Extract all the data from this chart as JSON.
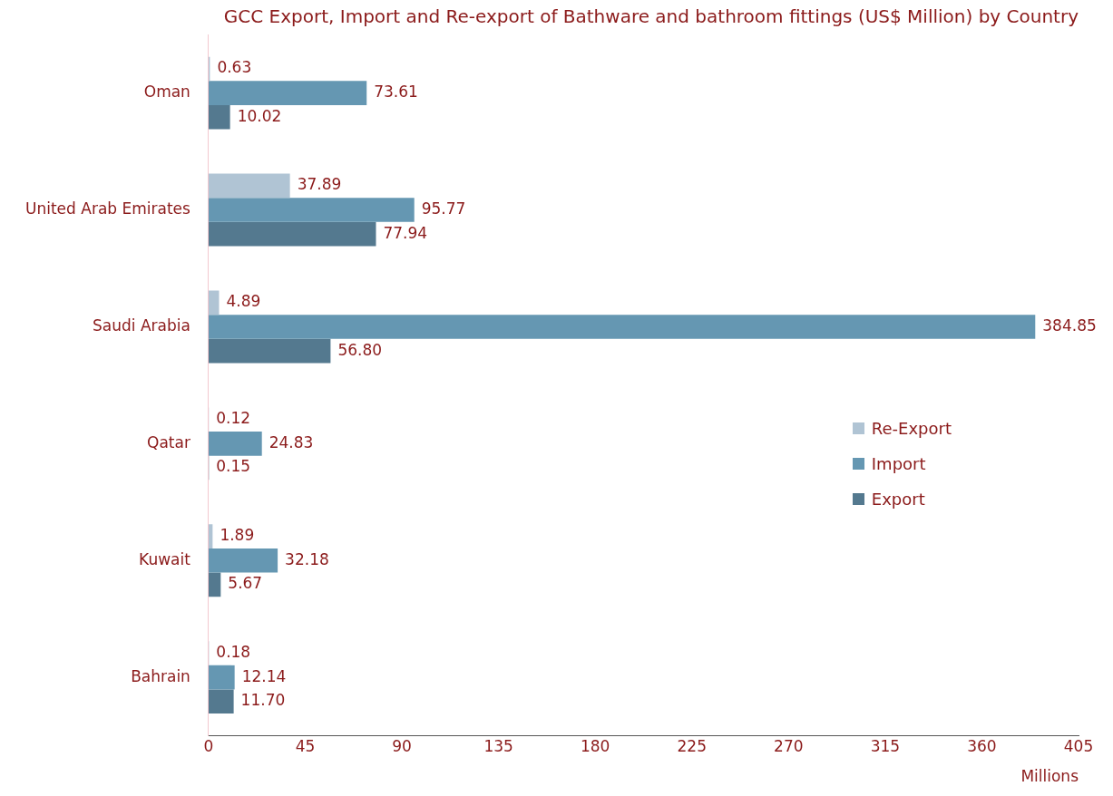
{
  "chart_data": {
    "type": "bar",
    "orientation": "horizontal",
    "title": "GCC Export, Import and Re-export of Bathware and bathroom fittings (US$ Million) by Country",
    "xlabel": "Millions",
    "categories": [
      "Oman",
      "United Arab Emirates",
      "Saudi Arabia",
      "Qatar",
      "Kuwait",
      "Bahrain"
    ],
    "series": [
      {
        "name": "Re-Export",
        "color": "#b0c4d4",
        "values": [
          0.63,
          37.89,
          4.89,
          0.12,
          1.89,
          0.18
        ],
        "value_labels": [
          "0.63",
          "37.89",
          "4.89",
          "0.12",
          "1.89",
          "0.18"
        ]
      },
      {
        "name": "Import",
        "color": "#6597b2",
        "values": [
          73.61,
          95.77,
          384.85,
          24.83,
          32.18,
          12.14
        ],
        "value_labels": [
          "73.61",
          "95.77",
          "384.85",
          "24.83",
          "32.18",
          "12.14"
        ]
      },
      {
        "name": "Export",
        "color": "#54798f",
        "values": [
          10.02,
          77.94,
          56.8,
          0.15,
          5.67,
          11.7
        ],
        "value_labels": [
          "10.02",
          "77.94",
          "56.80",
          "0.15",
          "5.67",
          "11.70"
        ]
      }
    ],
    "xlim": [
      0,
      405
    ],
    "xticks": [
      0,
      45,
      90,
      135,
      180,
      225,
      270,
      315,
      360,
      405
    ],
    "grid": false,
    "legend": "right"
  }
}
